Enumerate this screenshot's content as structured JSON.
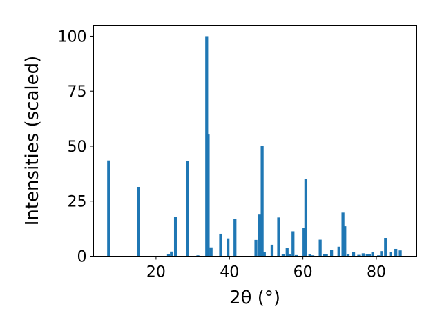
{
  "chart_data": {
    "type": "bar",
    "xlabel": "2θ (°)",
    "ylabel": "Intensities (scaled)",
    "xlim": [
      3,
      91
    ],
    "ylim": [
      0,
      105
    ],
    "xticks": [
      20,
      40,
      60,
      80
    ],
    "yticks": [
      0,
      25,
      50,
      75,
      100
    ],
    "color": "#1f77b4",
    "bar_width": 0.8,
    "x": [
      7.1,
      15.2,
      23.4,
      24.2,
      25.3,
      28.6,
      31.4,
      33.8,
      34.2,
      35.0,
      37.6,
      39.6,
      41.5,
      47.2,
      48.2,
      48.9,
      49.5,
      51.6,
      53.4,
      54.6,
      55.7,
      56.4,
      57.3,
      58.2,
      60.3,
      60.8,
      61.9,
      62.7,
      64.7,
      65.8,
      66.4,
      67.8,
      69.8,
      70.9,
      71.4,
      72.3,
      73.8,
      75.2,
      76.4,
      77.5,
      78.1,
      79.0,
      80.6,
      81.4,
      82.5,
      83.9,
      85.3,
      86.5
    ],
    "values": [
      43.5,
      31.5,
      0.8,
      2.1,
      17.8,
      43.2,
      0.4,
      100,
      55.3,
      4.0,
      10.2,
      8.1,
      16.8,
      7.4,
      18.9,
      50.1,
      1.9,
      5.2,
      17.6,
      0.9,
      3.7,
      0.8,
      11.3,
      0.5,
      12.7,
      35.1,
      0.9,
      0.4,
      7.5,
      1.1,
      0.8,
      2.8,
      4.3,
      19.8,
      13.6,
      1.0,
      1.9,
      0.6,
      1.3,
      0.8,
      1.1,
      2.0,
      0.4,
      2.3,
      8.3,
      1.9,
      3.3,
      2.6
    ]
  }
}
